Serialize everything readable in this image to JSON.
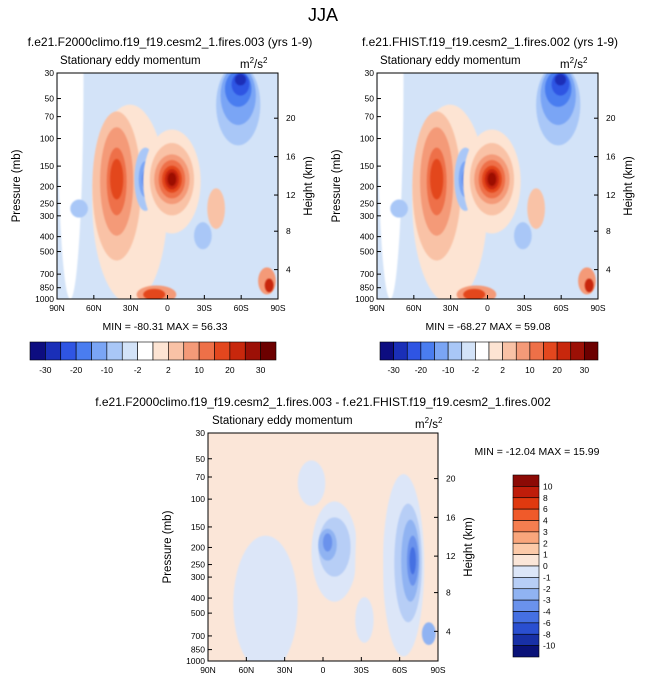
{
  "page_title": "JJA",
  "units": "m2/s2",
  "chart_data": [
    {
      "type": "heatmap",
      "title": "f.e21.F2000climo.f19_f19.cesm2_1.fires.003 (yrs 1-9)",
      "subtitle": "Stationary eddy momentum",
      "units_base": "m",
      "units_exp1": "2",
      "units_mid": "/s",
      "units_exp2": "2",
      "xlabel": "",
      "ylabel": "Pressure (mb)",
      "ylabel_right": "Height (km)",
      "x_ticks": [
        "90N",
        "60N",
        "30N",
        "0",
        "30S",
        "60S",
        "90S"
      ],
      "y_ticks": [
        "30",
        "50",
        "70",
        "100",
        "150",
        "200",
        "250",
        "300",
        "400",
        "500",
        "700",
        "850",
        "1000"
      ],
      "height_ticks": [
        "20",
        "16",
        "12",
        "8",
        "4"
      ],
      "min": -80.31,
      "max": 56.33,
      "minmax_label": "MIN = -80.31   MAX =  56.33"
    },
    {
      "type": "heatmap",
      "title": "f.e21.FHIST.f19_f19.cesm2_1.fires.002 (yrs 1-9)",
      "subtitle": "Stationary eddy momentum",
      "units_base": "m",
      "units_exp1": "2",
      "units_mid": "/s",
      "units_exp2": "2",
      "xlabel": "",
      "ylabel": "Pressure (mb)",
      "ylabel_right": "Height (km)",
      "x_ticks": [
        "90N",
        "60N",
        "30N",
        "0",
        "30S",
        "60S",
        "90S"
      ],
      "y_ticks": [
        "30",
        "50",
        "70",
        "100",
        "150",
        "200",
        "250",
        "300",
        "400",
        "500",
        "700",
        "850",
        "1000"
      ],
      "height_ticks": [
        "20",
        "16",
        "12",
        "8",
        "4"
      ],
      "min": -68.27,
      "max": 59.08,
      "minmax_label": "MIN = -68.27   MAX =  59.08"
    },
    {
      "type": "heatmap",
      "title": "f.e21.F2000climo.f19_f19.cesm2_1.fires.003 - f.e21.FHIST.f19_f19.cesm2_1.fires.002",
      "subtitle": "Stationary eddy momentum",
      "units_base": "m",
      "units_exp1": "2",
      "units_mid": "/s",
      "units_exp2": "2",
      "xlabel": "",
      "ylabel": "Pressure (mb)",
      "ylabel_right": "Height (km)",
      "x_ticks": [
        "90N",
        "60N",
        "30N",
        "0",
        "30S",
        "60S",
        "90S"
      ],
      "y_ticks": [
        "30",
        "50",
        "70",
        "100",
        "150",
        "200",
        "250",
        "300",
        "400",
        "500",
        "700",
        "850",
        "1000"
      ],
      "height_ticks": [
        "20",
        "16",
        "12",
        "8",
        "4"
      ],
      "min": -12.04,
      "max": 15.99,
      "minmax_label": "MIN = -12.04   MAX =  15.99"
    }
  ],
  "colorbar_top": {
    "labels": [
      "-30",
      "-20",
      "-10",
      "-2",
      "2",
      "10",
      "20",
      "30"
    ],
    "colors": [
      "#0d0d80",
      "#1a2fb8",
      "#2f55e3",
      "#4a7df0",
      "#7aa5f5",
      "#a9c7f7",
      "#d3e3f8",
      "#ffffff",
      "#fde4d3",
      "#f9c2a6",
      "#f49a78",
      "#ee7048",
      "#e3471e",
      "#c8270c",
      "#9c1006",
      "#6c0000"
    ]
  },
  "colorbar_diff": {
    "labels": [
      "10",
      "8",
      "6",
      "4",
      "3",
      "2",
      "1",
      "0",
      "-1",
      "-2",
      "-3",
      "-4",
      "-6",
      "-8",
      "-10"
    ],
    "colors": [
      "#8c0a05",
      "#bf1d0a",
      "#e0390f",
      "#f05a2a",
      "#f57e50",
      "#f9a67c",
      "#fccaa9",
      "#fbe6d8",
      "#dce6f8",
      "#b7cef6",
      "#90b3f2",
      "#6a92ec",
      "#4570e2",
      "#2a4fd0",
      "#1830a6",
      "#0a1278"
    ]
  }
}
